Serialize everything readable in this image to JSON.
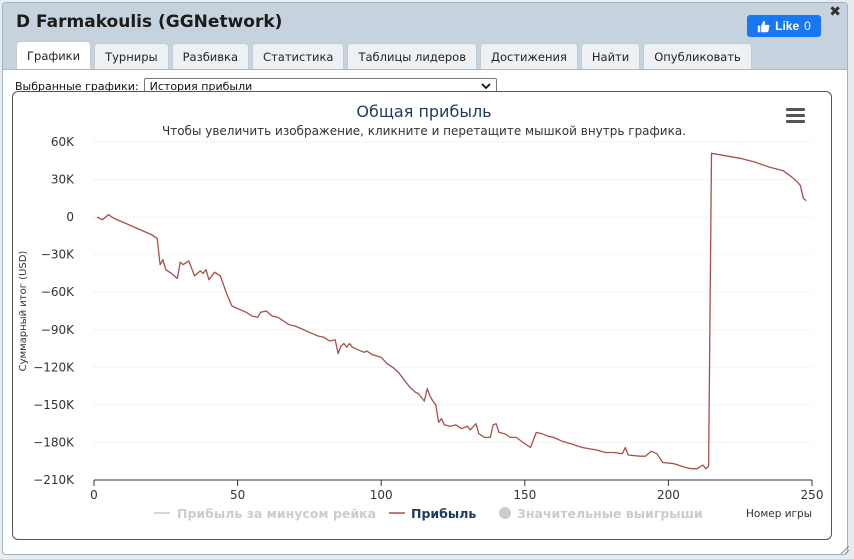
{
  "window": {
    "title": "D Farmakoulis (GGNetwork)",
    "close_glyph": "✖",
    "like_label": "Like",
    "like_count": "0"
  },
  "tabs": [
    {
      "label": "Графики",
      "active": true
    },
    {
      "label": "Турниры",
      "active": false
    },
    {
      "label": "Разбивка",
      "active": false
    },
    {
      "label": "Статистика",
      "active": false
    },
    {
      "label": "Таблицы лидеров",
      "active": false
    },
    {
      "label": "Достижения",
      "active": false
    },
    {
      "label": "Найти",
      "active": false
    },
    {
      "label": "Опубликовать",
      "active": false
    }
  ],
  "selector": {
    "label": "Выбранные графики:",
    "value": "История прибыли"
  },
  "colors": {
    "accent": "#1877f2",
    "profit_line": "#a8504b",
    "title": "#1f3a5f"
  },
  "icons": [
    "thumbs-up-icon",
    "close-icon",
    "chevron-down-icon",
    "menu-icon"
  ],
  "chart_data": {
    "type": "line",
    "title": "Общая прибыль",
    "subtitle": "Чтобы увеличить изображение, кликните и перетащите мышкой внутрь графика.",
    "xlabel": "Номер игры",
    "ylabel": "Суммарный итог (USD)",
    "xlim": [
      0,
      250
    ],
    "ylim": [
      -210000,
      60000
    ],
    "x_ticks": [
      "0",
      "50",
      "100",
      "150",
      "200",
      "250"
    ],
    "y_ticks": [
      "60K",
      "30K",
      "0",
      "−30K",
      "−60K",
      "−90K",
      "−120K",
      "−150K",
      "−180K",
      "−210K"
    ],
    "grid": true,
    "legend_position": "bottom",
    "legend": [
      {
        "name": "Прибыль за минусом рейка",
        "color": "#cccccc",
        "visible": false,
        "symbol": "line"
      },
      {
        "name": "Прибыль",
        "color": "#a8504b",
        "visible": true,
        "symbol": "line"
      },
      {
        "name": "Значительные выигрыши",
        "color": "#cccccc",
        "visible": false,
        "symbol": "circle"
      }
    ],
    "series": [
      {
        "name": "Прибыль",
        "color": "#a8504b",
        "points": [
          [
            1,
            0
          ],
          [
            3,
            -2000
          ],
          [
            5,
            2000
          ],
          [
            7,
            -1000
          ],
          [
            10,
            -4000
          ],
          [
            13,
            -7000
          ],
          [
            16,
            -10000
          ],
          [
            18,
            -12000
          ],
          [
            20,
            -14000
          ],
          [
            22,
            -17000
          ],
          [
            23,
            -38000
          ],
          [
            24,
            -34000
          ],
          [
            25,
            -42000
          ],
          [
            27,
            -45000
          ],
          [
            29,
            -49000
          ],
          [
            30,
            -36000
          ],
          [
            31,
            -38000
          ],
          [
            33,
            -35000
          ],
          [
            35,
            -47000
          ],
          [
            37,
            -43000
          ],
          [
            38,
            -45000
          ],
          [
            39,
            -42000
          ],
          [
            40,
            -50000
          ],
          [
            42,
            -44000
          ],
          [
            44,
            -47000
          ],
          [
            46,
            -60000
          ],
          [
            48,
            -71000
          ],
          [
            50,
            -73000
          ],
          [
            53,
            -76000
          ],
          [
            55,
            -79000
          ],
          [
            57,
            -80000
          ],
          [
            58,
            -76000
          ],
          [
            60,
            -75000
          ],
          [
            62,
            -79000
          ],
          [
            64,
            -80000
          ],
          [
            66,
            -83000
          ],
          [
            68,
            -86000
          ],
          [
            70,
            -87000
          ],
          [
            72,
            -89000
          ],
          [
            75,
            -92000
          ],
          [
            78,
            -95000
          ],
          [
            80,
            -96000
          ],
          [
            82,
            -99000
          ],
          [
            84,
            -98000
          ],
          [
            85,
            -109000
          ],
          [
            86,
            -103000
          ],
          [
            87,
            -101000
          ],
          [
            88,
            -104000
          ],
          [
            89,
            -101000
          ],
          [
            90,
            -104000
          ],
          [
            92,
            -106000
          ],
          [
            94,
            -108000
          ],
          [
            95,
            -107000
          ],
          [
            97,
            -110000
          ],
          [
            100,
            -112000
          ],
          [
            102,
            -117000
          ],
          [
            104,
            -120000
          ],
          [
            106,
            -124000
          ],
          [
            108,
            -130000
          ],
          [
            110,
            -136000
          ],
          [
            112,
            -140000
          ],
          [
            113,
            -141000
          ],
          [
            115,
            -147000
          ],
          [
            116,
            -137000
          ],
          [
            117,
            -143000
          ],
          [
            118,
            -147000
          ],
          [
            119,
            -150000
          ],
          [
            120,
            -164000
          ],
          [
            121,
            -161000
          ],
          [
            122,
            -166000
          ],
          [
            124,
            -167000
          ],
          [
            126,
            -166000
          ],
          [
            128,
            -169000
          ],
          [
            130,
            -167000
          ],
          [
            131,
            -170000
          ],
          [
            133,
            -165000
          ],
          [
            134,
            -173000
          ],
          [
            136,
            -176000
          ],
          [
            138,
            -176000
          ],
          [
            139,
            -166000
          ],
          [
            140,
            -165000
          ],
          [
            141,
            -172000
          ],
          [
            143,
            -173000
          ],
          [
            145,
            -176000
          ],
          [
            147,
            -176000
          ],
          [
            150,
            -181000
          ],
          [
            152,
            -184000
          ],
          [
            154,
            -172000
          ],
          [
            156,
            -173000
          ],
          [
            158,
            -175000
          ],
          [
            160,
            -176000
          ],
          [
            163,
            -179000
          ],
          [
            166,
            -181000
          ],
          [
            170,
            -184000
          ],
          [
            175,
            -186000
          ],
          [
            178,
            -188000
          ],
          [
            181,
            -188000
          ],
          [
            184,
            -189000
          ],
          [
            185,
            -184000
          ],
          [
            186,
            -190000
          ],
          [
            190,
            -191000
          ],
          [
            192,
            -191000
          ],
          [
            194,
            -187000
          ],
          [
            196,
            -189000
          ],
          [
            198,
            -196000
          ],
          [
            202,
            -197000
          ],
          [
            206,
            -200000
          ],
          [
            208,
            -201000
          ],
          [
            210,
            -201000
          ],
          [
            212,
            -198000
          ],
          [
            213,
            -201000
          ],
          [
            214,
            -199000
          ],
          [
            215,
            51000
          ],
          [
            220,
            49000
          ],
          [
            225,
            47000
          ],
          [
            230,
            44000
          ],
          [
            235,
            40000
          ],
          [
            240,
            37000
          ],
          [
            243,
            32000
          ],
          [
            245,
            28000
          ],
          [
            246,
            25000
          ],
          [
            247,
            15000
          ],
          [
            248,
            13000
          ]
        ]
      }
    ]
  }
}
